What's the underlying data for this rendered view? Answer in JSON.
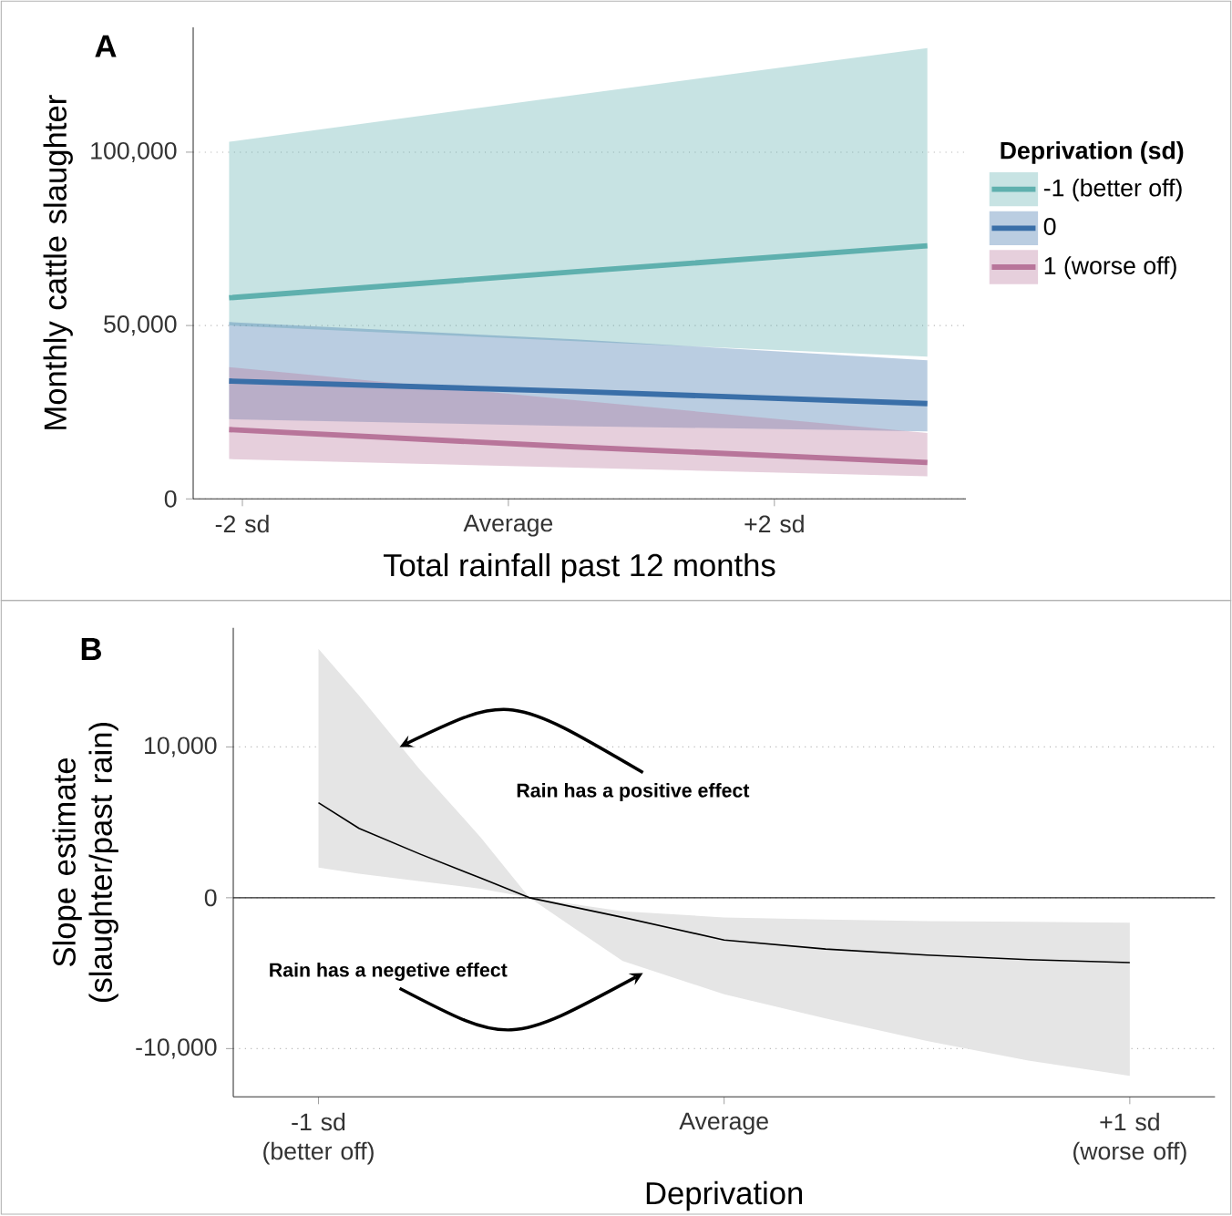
{
  "chart_data": [
    {
      "type": "line",
      "xlabel": "Total rainfall past 12 months",
      "ylabel": "Monthly cattle slaughter",
      "legend_title": "Deprivation (sd)",
      "annotations": [
        "A"
      ],
      "xlim": [
        -2.37,
        3.44
      ],
      "ylim": [
        0,
        136000
      ],
      "xticks": [
        {
          "value": -2,
          "label": "-2 sd"
        },
        {
          "value": 0,
          "label": "Average"
        },
        {
          "value": 2,
          "label": "+2 sd"
        }
      ],
      "yticks": [
        0,
        {
          "value": 50000,
          "label": "50,000"
        },
        {
          "value": 100000,
          "label": "100,000"
        }
      ],
      "grid": "y",
      "legend": "right",
      "series": [
        {
          "name": "-1 (better off)",
          "color": "#5fb0ae",
          "x": [
            -2.1,
            0.5,
            3.15
          ],
          "values": [
            58000,
            65500,
            73000
          ],
          "lower": [
            50000,
            45500,
            41000
          ],
          "upper": [
            103000,
            116500,
            130000
          ]
        },
        {
          "name": "0",
          "color": "#3a6fa8",
          "x": [
            -2.1,
            0.5,
            3.15
          ],
          "values": [
            34000,
            31000,
            27500
          ],
          "lower": [
            23000,
            21000,
            19500
          ],
          "upper": [
            51000,
            46000,
            40000
          ]
        },
        {
          "name": "1 (worse off)",
          "color": "#b8759a",
          "x": [
            -2.1,
            0.5,
            3.15
          ],
          "values": [
            20000,
            15000,
            10500
          ],
          "lower": [
            11500,
            9000,
            6500
          ],
          "upper": [
            38000,
            28500,
            19000
          ]
        }
      ]
    },
    {
      "type": "line",
      "xlabel": "Deprivation",
      "ylabel": "Slope estimate (slaughter/past rain)",
      "annotations": [
        "B",
        {
          "text": "Rain has a positive effect",
          "x": -0.8,
          "y": 10000
        },
        {
          "text": "Rain has a negetive effect",
          "x": -0.2,
          "y": -5000
        }
      ],
      "xlim": [
        -1.21,
        1.21
      ],
      "ylim": [
        -13200,
        17900
      ],
      "xticks": [
        {
          "value": -1,
          "label": "-1 sd (better off)"
        },
        {
          "value": 0,
          "label": "Average"
        },
        {
          "value": 1,
          "label": "+1 sd (worse off)"
        }
      ],
      "yticks": [
        {
          "value": -10000,
          "label": "-10,000"
        },
        0,
        {
          "value": 10000,
          "label": "10,000"
        }
      ],
      "grid": "y",
      "ref_lines": [
        {
          "axis": "y",
          "value": 0
        }
      ],
      "series": [
        {
          "color": "#000000",
          "x": [
            -1,
            -0.9,
            -0.75,
            -0.6,
            -0.48,
            -0.25,
            0,
            0.25,
            0.5,
            0.75,
            1
          ],
          "values": [
            6300,
            4600,
            2900,
            1300,
            0,
            -1300,
            -2800,
            -3400,
            -3800,
            -4100,
            -4300
          ],
          "lower": [
            2000,
            1600,
            1100,
            600,
            0,
            -4200,
            -6400,
            -8000,
            -9500,
            -10800,
            -11800
          ],
          "upper": [
            16500,
            13400,
            8500,
            4000,
            0,
            -900,
            -1300,
            -1450,
            -1550,
            -1600,
            -1650
          ]
        }
      ]
    }
  ]
}
